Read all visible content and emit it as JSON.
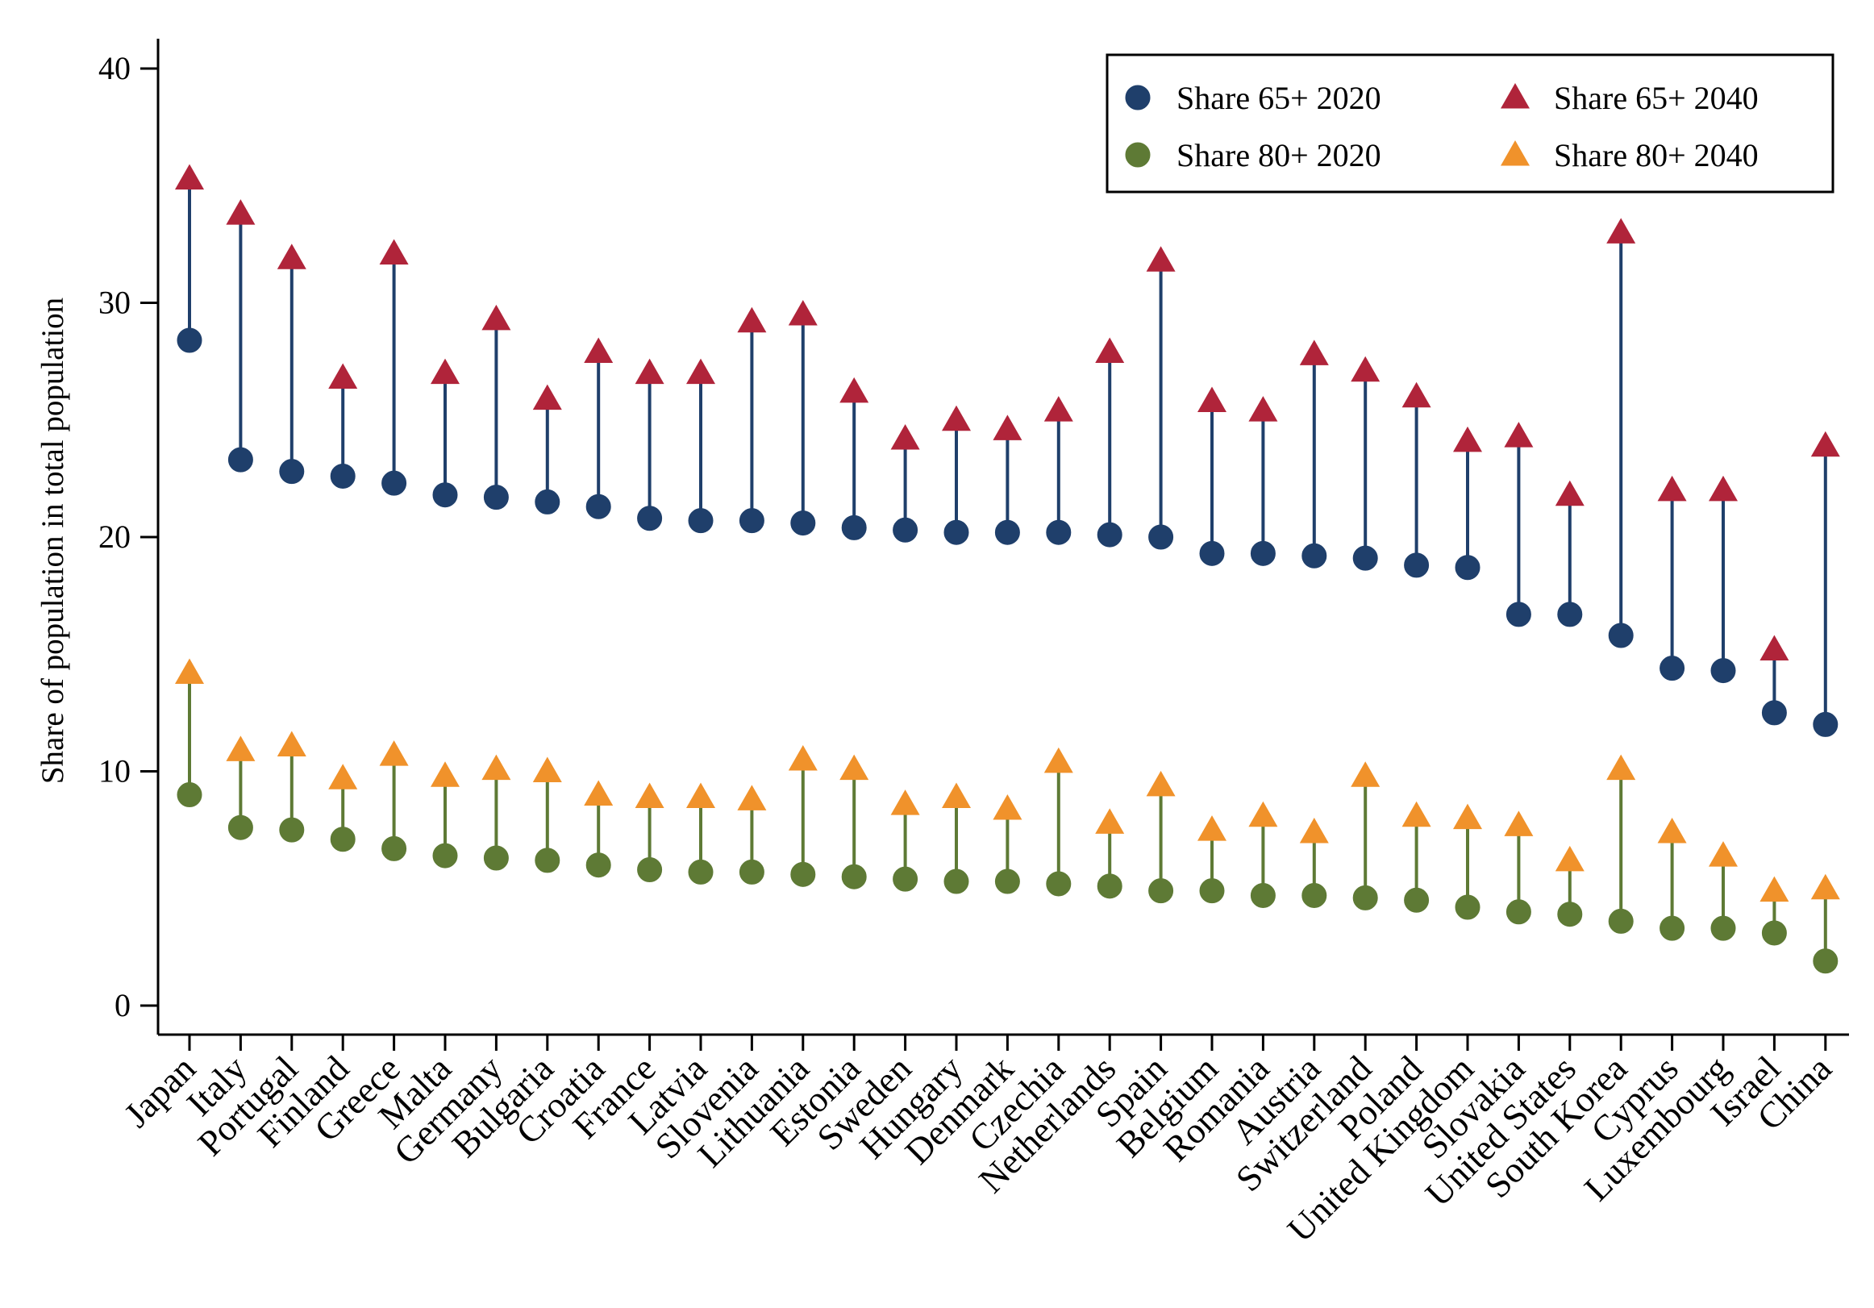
{
  "chart_data": {
    "type": "scatter",
    "xlabel": "",
    "ylabel": "Share of population in total population",
    "ylim": [
      0,
      40
    ],
    "yticks": [
      0,
      10,
      20,
      30,
      40
    ],
    "grid": false,
    "legend_position": "top-right",
    "categories": [
      "Japan",
      "Italy",
      "Portugal",
      "Finland",
      "Greece",
      "Malta",
      "Germany",
      "Bulgaria",
      "Croatia",
      "France",
      "Latvia",
      "Slovenia",
      "Lithuania",
      "Estonia",
      "Sweden",
      "Hungary",
      "Denmark",
      "Czechia",
      "Netherlands",
      "Spain",
      "Belgium",
      "Romania",
      "Austria",
      "Switzerland",
      "Poland",
      "United Kingdom",
      "Slovakia",
      "United States",
      "South Korea",
      "Cyprus",
      "Luxembourg",
      "Israel",
      "China"
    ],
    "series": [
      {
        "name": "Share 65+ 2020",
        "marker": "circle",
        "color": "#1f3f6b",
        "values": [
          28.4,
          23.3,
          22.8,
          22.6,
          22.3,
          21.8,
          21.7,
          21.5,
          21.3,
          20.8,
          20.7,
          20.7,
          20.6,
          20.4,
          20.3,
          20.2,
          20.2,
          20.2,
          20.1,
          20.0,
          19.3,
          19.3,
          19.2,
          19.1,
          18.8,
          18.7,
          16.7,
          16.7,
          15.8,
          14.4,
          14.3,
          12.5,
          12.0
        ]
      },
      {
        "name": "Share 65+ 2040",
        "marker": "triangle",
        "color": "#b0243a",
        "values": [
          35.3,
          33.8,
          31.9,
          26.8,
          32.1,
          27.0,
          29.3,
          25.9,
          27.9,
          27.0,
          27.0,
          29.2,
          29.5,
          26.2,
          24.2,
          25.0,
          24.6,
          25.4,
          27.9,
          31.8,
          25.8,
          25.4,
          27.8,
          27.1,
          26.0,
          24.1,
          24.3,
          21.8,
          33.0,
          22.0,
          22.0,
          15.2,
          23.9
        ]
      },
      {
        "name": "Share 80+ 2020",
        "marker": "circle",
        "color": "#5e7a35",
        "values": [
          9.0,
          7.6,
          7.5,
          7.1,
          6.7,
          6.4,
          6.3,
          6.2,
          6.0,
          5.8,
          5.7,
          5.7,
          5.6,
          5.5,
          5.4,
          5.3,
          5.3,
          5.2,
          5.1,
          4.9,
          4.9,
          4.7,
          4.7,
          4.6,
          4.5,
          4.2,
          4.0,
          3.9,
          3.6,
          3.3,
          3.3,
          3.1,
          1.9
        ]
      },
      {
        "name": "Share 80+ 2040",
        "marker": "triangle",
        "color": "#f0922b",
        "values": [
          14.2,
          10.9,
          11.1,
          9.7,
          10.7,
          9.8,
          10.1,
          10.0,
          9.0,
          8.9,
          8.9,
          8.8,
          10.5,
          10.1,
          8.6,
          8.9,
          8.4,
          10.4,
          7.8,
          9.4,
          7.5,
          8.1,
          7.4,
          9.8,
          8.1,
          8.0,
          7.7,
          6.2,
          10.1,
          7.4,
          6.4,
          4.9,
          5.0
        ]
      }
    ],
    "stem_colors": {
      "share65": "#1f3f6b",
      "share80": "#5e7a35"
    }
  }
}
